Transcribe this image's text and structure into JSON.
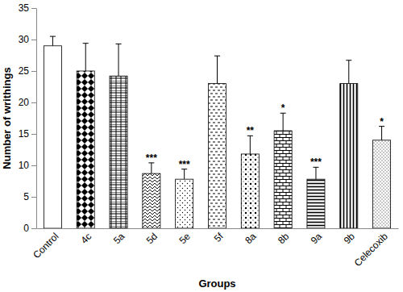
{
  "chart_data": {
    "type": "bar",
    "x_label": "Groups",
    "y_label": "Number of writhings",
    "categories": [
      "Control",
      "4c",
      "5a",
      "5d",
      "5e",
      "5f",
      "8a",
      "8b",
      "9a",
      "9b",
      "Celecoxib"
    ],
    "values": [
      29,
      25,
      24.2,
      8.7,
      7.8,
      23,
      11.8,
      15.5,
      7.8,
      23,
      14
    ],
    "errors": [
      1.5,
      4.4,
      5.1,
      1.7,
      1.6,
      4.4,
      2.9,
      2.8,
      1.9,
      3.7,
      2.2
    ],
    "significance": [
      null,
      null,
      null,
      "***",
      "***",
      null,
      "**",
      "*",
      "***",
      null,
      "*"
    ],
    "color": "#000000",
    "ylim": [
      0,
      35
    ],
    "yticks": [
      0,
      5,
      10,
      15,
      20,
      25,
      30,
      35
    ],
    "grid": false
  }
}
